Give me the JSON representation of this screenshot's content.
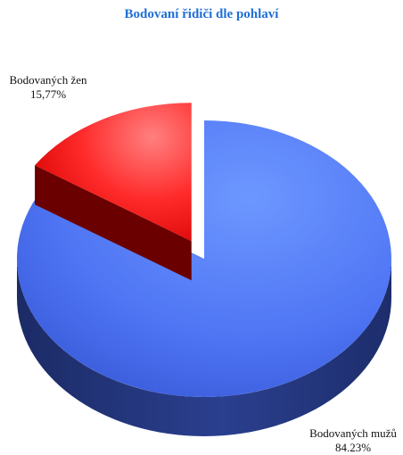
{
  "chart_data": {
    "type": "pie",
    "title": "Bodovaní řidiči dle pohlaví",
    "slices": [
      {
        "name": "Bodovaných mužů",
        "value": 84.23,
        "label_text": "84.23%",
        "color": "#4a6ff0"
      },
      {
        "name": "Bodovaných žen",
        "value": 15.77,
        "label_text": "15,77%",
        "color": "#ff2020"
      }
    ],
    "exploded": "Bodovaných žen",
    "style": "3d"
  }
}
